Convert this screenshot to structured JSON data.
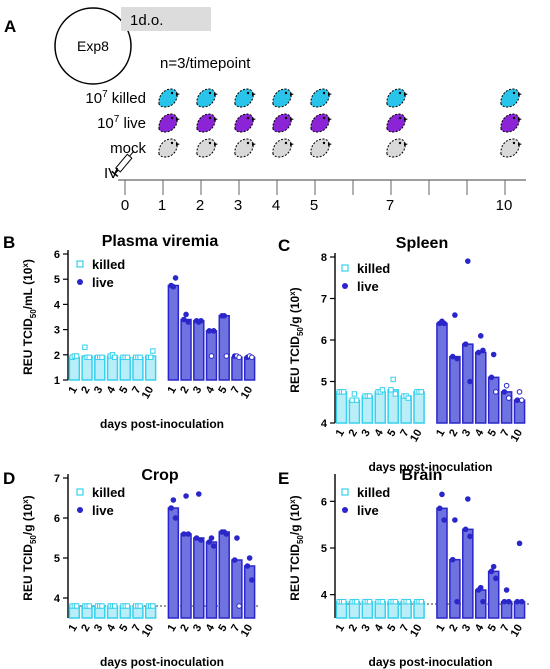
{
  "panel_a": {
    "letter": "A",
    "experiment": "Exp8",
    "dose_label": "1d.o.",
    "n_label": "n=3/timepoint",
    "rows": [
      {
        "base": "10",
        "exp": "7",
        "suffix": " killed",
        "color": "#29c4ea"
      },
      {
        "base": "10",
        "exp": "7",
        "suffix": " live",
        "color": "#8a24d6"
      },
      {
        "base": "",
        "exp": "",
        "suffix": "mock",
        "color": "#d9d9d9"
      }
    ],
    "route": "IV",
    "timeline_ticks": [
      "0",
      "1",
      "2",
      "3",
      "4",
      "5",
      "7",
      "10"
    ],
    "sampled_days": [
      1,
      2,
      3,
      4,
      5,
      7,
      10
    ]
  },
  "colors": {
    "killed": "#36d1ee",
    "killed_fill": "#b9edf8",
    "live": "#2a26c9",
    "live_fill": "#6f73e0",
    "lod": "#333333"
  },
  "chart_data": [
    {
      "letter": "B",
      "type": "bar",
      "title": "Plasma viremia",
      "ylabel": {
        "pre": "REU TCID",
        "sub": "50",
        "mid": "/mL (10",
        "sup": "x",
        "post": ")"
      },
      "xlabel": "days post-inoculation",
      "ylim": [
        1,
        6
      ],
      "yticks": [
        1,
        2,
        3,
        4,
        5,
        6
      ],
      "lod": null,
      "categories": [
        "1",
        "2",
        "3",
        "4",
        "5",
        "7",
        "10"
      ],
      "legend": [
        "killed",
        "live"
      ],
      "series": [
        {
          "name": "killed",
          "values": [
            1.9,
            1.95,
            1.95,
            1.95,
            1.9,
            1.9,
            1.95
          ],
          "points": [
            [
              1.9,
              1.95,
              1.95
            ],
            [
              2.3,
              1.9,
              1.9
            ],
            [
              1.9,
              1.9,
              1.9
            ],
            [
              1.95,
              2.0,
              1.9
            ],
            [
              1.9,
              1.9,
              1.9
            ],
            [
              1.9,
              1.9,
              1.9
            ],
            [
              1.9,
              1.9,
              2.15
            ]
          ]
        },
        {
          "name": "live",
          "values": [
            4.75,
            3.4,
            3.35,
            2.95,
            3.55,
            1.9,
            1.9
          ],
          "points": [
            [
              4.75,
              4.7,
              5.05
            ],
            [
              3.4,
              3.6,
              3.3
            ],
            [
              3.35,
              3.3,
              3.35
            ],
            [
              2.95,
              1.95,
              2.95
            ],
            [
              3.55,
              3.55,
              1.95
            ],
            [
              1.95,
              1.95,
              1.9
            ],
            [
              1.9,
              1.95,
              1.9
            ]
          ]
        }
      ]
    },
    {
      "letter": "C",
      "type": "bar",
      "title": "Spleen",
      "ylabel": {
        "pre": "REU TCID",
        "sub": "50",
        "mid": "/g (10",
        "sup": "x",
        "post": ")"
      },
      "xlabel": "days post-inoculation",
      "ylim": [
        4,
        8
      ],
      "yticks": [
        4,
        5,
        6,
        7,
        8
      ],
      "lod": null,
      "categories": [
        "1",
        "2",
        "3",
        "4",
        "5",
        "7",
        "10"
      ],
      "legend": [
        "killed",
        "live"
      ],
      "series": [
        {
          "name": "killed",
          "values": [
            4.75,
            4.55,
            4.65,
            4.75,
            4.8,
            4.65,
            4.75
          ],
          "points": [
            [
              4.75,
              4.75,
              4.75
            ],
            [
              4.55,
              4.7,
              4.55
            ],
            [
              4.65,
              4.65,
              4.65
            ],
            [
              4.75,
              4.75,
              4.8
            ],
            [
              4.8,
              5.05,
              4.7
            ],
            [
              4.65,
              4.65,
              4.6
            ],
            [
              4.75,
              4.75,
              4.75
            ]
          ]
        },
        {
          "name": "live",
          "values": [
            6.4,
            5.6,
            5.9,
            5.7,
            5.1,
            4.75,
            4.55
          ],
          "points": [
            [
              6.4,
              6.45,
              6.4
            ],
            [
              5.6,
              6.6,
              5.55
            ],
            [
              5.9,
              7.9,
              5.0
            ],
            [
              5.7,
              6.1,
              5.75
            ],
            [
              5.1,
              5.65,
              4.75
            ],
            [
              4.75,
              4.9,
              4.6
            ],
            [
              4.55,
              4.75,
              4.55
            ]
          ]
        }
      ]
    },
    {
      "letter": "D",
      "type": "bar",
      "title": "Crop",
      "ylabel": {
        "pre": "REU TCID",
        "sub": "50",
        "mid": "/g (10",
        "sup": "x",
        "post": ")"
      },
      "xlabel": "days post-inoculation",
      "ylim": [
        3.5,
        7
      ],
      "yticks": [
        4,
        5,
        6,
        7
      ],
      "lod": 3.8,
      "categories": [
        "1",
        "2",
        "3",
        "4",
        "5",
        "7",
        "10"
      ],
      "legend": [
        "killed",
        "live"
      ],
      "series": [
        {
          "name": "killed",
          "values": [
            3.8,
            3.8,
            3.8,
            3.8,
            3.8,
            3.8,
            3.8
          ],
          "points": [
            [
              3.8,
              3.8,
              3.8
            ],
            [
              3.8,
              3.8,
              3.8
            ],
            [
              3.8,
              3.8,
              3.8
            ],
            [
              3.8,
              3.8,
              3.8
            ],
            [
              3.8,
              3.8,
              3.8
            ],
            [
              3.8,
              3.8,
              3.8
            ],
            [
              3.8,
              3.8,
              3.8
            ]
          ]
        },
        {
          "name": "live",
          "values": [
            6.25,
            5.6,
            5.5,
            5.4,
            5.65,
            4.95,
            4.8
          ],
          "points": [
            [
              6.25,
              6.45,
              6.0
            ],
            [
              5.6,
              6.55,
              5.6
            ],
            [
              5.5,
              6.6,
              5.45
            ],
            [
              5.4,
              5.5,
              5.3
            ],
            [
              5.65,
              5.65,
              5.6
            ],
            [
              4.95,
              5.5,
              3.8
            ],
            [
              4.8,
              5.0,
              4.45
            ]
          ]
        }
      ]
    },
    {
      "letter": "E",
      "type": "bar",
      "title": "Brain",
      "ylabel": {
        "pre": "REU TCID",
        "sub": "50",
        "mid": "/g (10",
        "sup": "x",
        "post": ")"
      },
      "xlabel": "days post-inoculation",
      "ylim": [
        3.5,
        6.5
      ],
      "yticks": [
        4,
        5,
        6
      ],
      "lod": 3.8,
      "categories": [
        "1",
        "2",
        "3",
        "4",
        "5",
        "7",
        "10"
      ],
      "legend": [
        "killed",
        "live"
      ],
      "series": [
        {
          "name": "killed",
          "values": [
            3.85,
            3.85,
            3.85,
            3.85,
            3.85,
            3.85,
            3.85
          ],
          "points": [
            [
              3.85,
              3.85,
              3.85
            ],
            [
              3.85,
              3.85,
              3.85
            ],
            [
              3.85,
              3.85,
              3.85
            ],
            [
              3.85,
              3.85,
              3.85
            ],
            [
              3.85,
              3.85,
              3.85
            ],
            [
              3.85,
              3.85,
              3.85
            ],
            [
              3.85,
              3.85,
              3.85
            ]
          ]
        },
        {
          "name": "live",
          "values": [
            5.85,
            4.75,
            5.4,
            4.1,
            4.5,
            3.85,
            3.85
          ],
          "points": [
            [
              5.85,
              6.15,
              5.6
            ],
            [
              4.75,
              5.6,
              3.85
            ],
            [
              5.4,
              6.05,
              5.25
            ],
            [
              4.1,
              4.15,
              3.85
            ],
            [
              4.5,
              4.6,
              4.35
            ],
            [
              3.85,
              4.1,
              3.85
            ],
            [
              3.85,
              5.1,
              3.85
            ]
          ]
        }
      ]
    }
  ]
}
